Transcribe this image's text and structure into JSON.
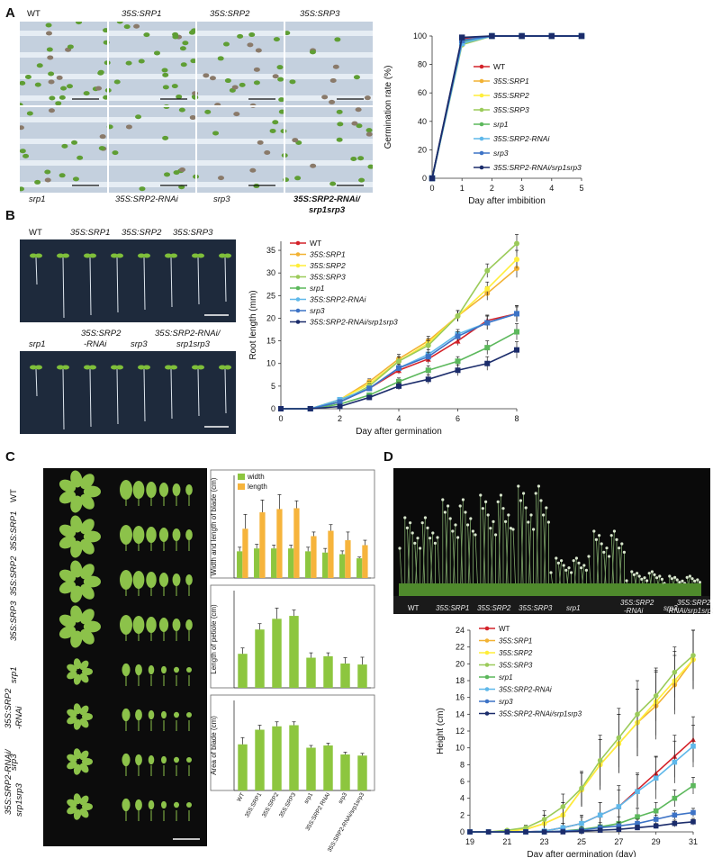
{
  "panels": {
    "A": "A",
    "B": "B",
    "C": "C",
    "D": "D"
  },
  "panelA": {
    "top_labels": [
      "WT",
      "35S:SRP1",
      "35S:SRP2",
      "35S:SRP3"
    ],
    "bottom_labels": [
      "srp1",
      "35S:SRP2-RNAi",
      "srp3",
      "35S:SRP2-RNAi/",
      "srp1srp3"
    ]
  },
  "panelB": {
    "top_labels": [
      "WT",
      "35S:SRP1",
      "35S:SRP2",
      "35S:SRP3"
    ],
    "bottom_labels": [
      "srp1",
      "35S:SRP2",
      "-RNAi",
      "srp3",
      "35S:SRP2-RNAi/",
      "srp1srp3"
    ]
  },
  "panelC": {
    "row_labels": [
      "WT",
      "35S:SRP1",
      "35S:SRP2",
      "35S:SRP3",
      "srp1",
      "35S:SRP2",
      "-RNAi",
      "srp3",
      "35S:SRP2-RNAi/",
      "srp1srp3"
    ]
  },
  "panelD": {
    "photo_labels": [
      "WT",
      "35S:SRP1",
      "35S:SRP2",
      "35S:SRP3",
      "srp1",
      "35S:SRP2",
      "-RNAi",
      "srp3",
      "35S:SRP2",
      "-RNAi/srp1srp3"
    ]
  },
  "colors": {
    "WT": "#d4232a",
    "35S:SRP1": "#f2b233",
    "35S:SRP2": "#ffee3a",
    "35S:SRP3": "#9bcb5a",
    "srp1": "#5cb85c",
    "35S:SRP2-RNAi": "#5fb8ea",
    "srp3": "#3d73c6",
    "35S:SRP2-RNAi/srp1srp3": "#1b2c6b",
    "width": "#8dc63f",
    "length": "#f6b43c"
  },
  "chart_data": [
    {
      "id": "A",
      "type": "line",
      "xlabel": "Day after imbibition",
      "ylabel": "Germination rate (%)",
      "x": [
        0,
        1,
        2,
        3,
        4,
        5
      ],
      "xlim": [
        0,
        5
      ],
      "ylim": [
        0,
        100
      ],
      "yticks": [
        0,
        20,
        40,
        60,
        80,
        100
      ],
      "legend": "center",
      "series": [
        {
          "name": "WT",
          "values": [
            0,
            98,
            100,
            100,
            100,
            100
          ]
        },
        {
          "name": "35S:SRP1",
          "values": [
            0,
            97,
            100,
            100,
            100,
            100
          ]
        },
        {
          "name": "35S:SRP2",
          "values": [
            0,
            96,
            100,
            100,
            100,
            100
          ]
        },
        {
          "name": "35S:SRP3",
          "values": [
            0,
            94,
            100,
            100,
            100,
            100
          ]
        },
        {
          "name": "srp1",
          "values": [
            0,
            96,
            100,
            100,
            100,
            100
          ]
        },
        {
          "name": "35S:SRP2-RNAi",
          "values": [
            0,
            95,
            100,
            100,
            100,
            100
          ]
        },
        {
          "name": "srp3",
          "values": [
            0,
            97,
            100,
            100,
            100,
            100
          ]
        },
        {
          "name": "35S:SRP2-RNAi/srp1srp3",
          "values": [
            0,
            99,
            100,
            100,
            100,
            100
          ]
        }
      ]
    },
    {
      "id": "B",
      "type": "line",
      "xlabel": "Day after germination",
      "ylabel": "Root length (mm)",
      "x": [
        0,
        1,
        2,
        3,
        4,
        5,
        6,
        7,
        8
      ],
      "xticks": [
        0,
        2,
        4,
        6,
        8
      ],
      "ylim": [
        0,
        37
      ],
      "yticks": [
        0,
        5,
        10,
        15,
        20,
        25,
        30,
        35
      ],
      "legend": "top-left",
      "series": [
        {
          "name": "WT",
          "values": [
            0,
            0,
            1.5,
            4.5,
            8.5,
            11,
            15,
            19.5,
            21
          ],
          "err": [
            0,
            0,
            0.3,
            0.5,
            0.8,
            1,
            1,
            1.2,
            1.5
          ]
        },
        {
          "name": "35S:SRP1",
          "values": [
            0,
            0,
            2,
            6,
            11,
            15,
            20.5,
            25.5,
            31
          ],
          "err": [
            0,
            0,
            0.3,
            0.6,
            1,
            1,
            1.2,
            1.5,
            2
          ]
        },
        {
          "name": "35S:SRP2",
          "values": [
            0,
            0,
            2,
            5.5,
            10.5,
            14.5,
            20.5,
            26.5,
            33
          ],
          "err": [
            0,
            0,
            0.3,
            0.6,
            1,
            1,
            1.2,
            1.5,
            2
          ]
        },
        {
          "name": "35S:SRP3",
          "values": [
            0,
            0,
            1.5,
            5,
            10.5,
            14,
            20.5,
            30.5,
            36.5
          ],
          "err": [
            0,
            0,
            0.3,
            0.6,
            1,
            1,
            1.2,
            1.5,
            2
          ]
        },
        {
          "name": "srp1",
          "values": [
            0,
            0,
            1,
            3,
            6,
            8.5,
            10.5,
            13.5,
            17
          ],
          "err": [
            0,
            0,
            0.3,
            0.5,
            0.8,
            1,
            1,
            1.5,
            1.8
          ]
        },
        {
          "name": "35S:SRP2-RNAi",
          "values": [
            0,
            0,
            2,
            4.5,
            9,
            12,
            16.5,
            19,
            21
          ],
          "err": [
            0,
            0,
            0.3,
            0.5,
            0.8,
            1,
            1,
            1.5,
            1.8
          ]
        },
        {
          "name": "srp3",
          "values": [
            0,
            0,
            1.5,
            4.5,
            9,
            11.5,
            16,
            19,
            21
          ],
          "err": [
            0,
            0,
            0.3,
            0.5,
            0.8,
            1,
            1,
            1.5,
            1.8
          ]
        },
        {
          "name": "35S:SRP2-RNAi/srp1srp3",
          "values": [
            0,
            0,
            0.5,
            2.5,
            5,
            6.5,
            8.5,
            10,
            13
          ],
          "err": [
            0,
            0,
            0.3,
            0.5,
            0.8,
            1,
            1.2,
            1.5,
            1.8
          ]
        }
      ]
    },
    {
      "id": "C1",
      "type": "bar",
      "ylabel": "Width and length of blade (cm)",
      "categories": [
        "WT",
        "35S:SRP1",
        "35S:SRP2",
        "35S:SRP3",
        "srp1",
        "35S:SRP2 RNAi",
        "srp3",
        "35S:SRP2-RNAi/srp1srp3"
      ],
      "ylim": [
        0,
        2.5
      ],
      "legend": "top-left",
      "series": [
        {
          "name": "width",
          "values": [
            0.65,
            0.72,
            0.72,
            0.72,
            0.65,
            0.62,
            0.58,
            0.48
          ],
          "err": [
            0.1,
            0.1,
            0.08,
            0.08,
            0.1,
            0.1,
            0.08,
            0.03
          ]
        },
        {
          "name": "length",
          "values": [
            1.2,
            1.6,
            1.68,
            1.7,
            1.02,
            1.15,
            0.92,
            0.8
          ],
          "err": [
            0.35,
            0.3,
            0.35,
            0.18,
            0.1,
            0.15,
            0.2,
            0.12
          ]
        }
      ]
    },
    {
      "id": "C2",
      "type": "bar",
      "ylabel": "Length of petiole (cm)",
      "categories": [
        "WT",
        "35S:SRP1",
        "35S:SRP2",
        "35S:SRP3",
        "srp1",
        "35S:SRP2 RNAi",
        "srp3",
        "35S:SRP2-RNAi/srp1srp3"
      ],
      "ylim": [
        0,
        2
      ],
      "series": [
        {
          "name": "petiole",
          "values": [
            0.7,
            1.2,
            1.42,
            1.48,
            0.62,
            0.65,
            0.5,
            0.48
          ],
          "err": [
            0.12,
            0.12,
            0.22,
            0.12,
            0.1,
            0.07,
            0.12,
            0.15
          ]
        }
      ]
    },
    {
      "id": "C3",
      "type": "bar",
      "ylabel": "Area of blade (cm)",
      "categories": [
        "WT",
        "35S:SRP1",
        "35S:SRP2",
        "35S:SRP3",
        "srp1",
        "35S:SRP2 RNAi",
        "srp3",
        "35S:SRP2-RNAi/srp1srp3"
      ],
      "ylim": [
        0,
        40
      ],
      "series": [
        {
          "name": "area",
          "values": [
            20.5,
            27,
            28.5,
            29,
            19,
            20,
            16,
            15.5
          ],
          "err": [
            3,
            2,
            2,
            1.5,
            1,
            1,
            1,
            1
          ]
        }
      ]
    },
    {
      "id": "D",
      "type": "line",
      "xlabel": "Day after germination (day)",
      "ylabel": "Height (cm)",
      "x": [
        19,
        20,
        21,
        22,
        23,
        24,
        25,
        26,
        27,
        28,
        29,
        30,
        31
      ],
      "xticks": [
        19,
        21,
        23,
        25,
        27,
        29,
        31
      ],
      "ylim": [
        0,
        24
      ],
      "yticks": [
        0,
        2,
        4,
        6,
        8,
        10,
        12,
        14,
        16,
        18,
        20,
        22,
        24
      ],
      "legend": "top-left",
      "series": [
        {
          "name": "WT",
          "values": [
            0,
            0,
            0,
            0,
            0.1,
            0.5,
            1,
            2,
            3,
            5,
            7,
            9,
            11
          ],
          "err": [
            0,
            0,
            0,
            0,
            0.2,
            0.5,
            1,
            1.5,
            2.5,
            2,
            2,
            2.5,
            2.7
          ]
        },
        {
          "name": "35S:SRP1",
          "values": [
            0,
            0,
            0.1,
            0.3,
            1,
            2,
            5,
            8,
            10.5,
            13,
            15,
            17.5,
            20.5
          ],
          "err": [
            0,
            0,
            0.1,
            0.3,
            1,
            1.5,
            2,
            3,
            3.5,
            4,
            4,
            3.5,
            3.5
          ]
        },
        {
          "name": "35S:SRP2",
          "values": [
            0,
            0,
            0.1,
            0.3,
            1,
            2,
            5,
            8,
            10.5,
            13,
            15.5,
            18,
            20.5
          ],
          "err": [
            0,
            0,
            0.1,
            0.3,
            1,
            1.5,
            2,
            3,
            3.5,
            4,
            4,
            3.5,
            3.5
          ]
        },
        {
          "name": "35S:SRP3",
          "values": [
            0,
            0,
            0.2,
            0.5,
            1.5,
            3,
            5.2,
            8.5,
            11.2,
            14,
            16.2,
            19,
            21
          ],
          "err": [
            0,
            0,
            0.1,
            0.3,
            1,
            1.5,
            2,
            3,
            3.5,
            4,
            3,
            3,
            3
          ]
        },
        {
          "name": "srp1",
          "values": [
            0,
            0,
            0,
            0,
            0,
            0.1,
            0.3,
            0.6,
            1,
            1.8,
            2.5,
            4,
            5.5
          ],
          "err": [
            0,
            0,
            0,
            0,
            0,
            0.2,
            0.3,
            0.5,
            0.8,
            1,
            1,
            1,
            1
          ]
        },
        {
          "name": "35S:SRP2-RNAi",
          "values": [
            0,
            0,
            0,
            0,
            0.1,
            0.5,
            1,
            2,
            3,
            4.8,
            6.4,
            8.3,
            10.2
          ],
          "err": [
            0,
            0,
            0,
            0,
            0.2,
            0.5,
            0.8,
            1.5,
            2,
            2,
            2.5,
            2.5,
            2.5
          ]
        },
        {
          "name": "srp3",
          "values": [
            0,
            0,
            0,
            0,
            0,
            0.1,
            0.2,
            0.5,
            0.7,
            1,
            1.5,
            2,
            2.3
          ],
          "err": [
            0,
            0,
            0,
            0,
            0,
            0.1,
            0.2,
            0.3,
            0.4,
            0.5,
            0.5,
            0.5,
            0.5
          ]
        },
        {
          "name": "35S:SRP2-RNAi/srp1srp3",
          "values": [
            0,
            0,
            0,
            0,
            0,
            0,
            0.1,
            0.2,
            0.3,
            0.5,
            0.7,
            1,
            1.2
          ],
          "err": [
            0,
            0,
            0,
            0,
            0,
            0,
            0.1,
            0.1,
            0.2,
            0.3,
            0.3,
            0.4,
            0.4
          ]
        }
      ]
    }
  ]
}
